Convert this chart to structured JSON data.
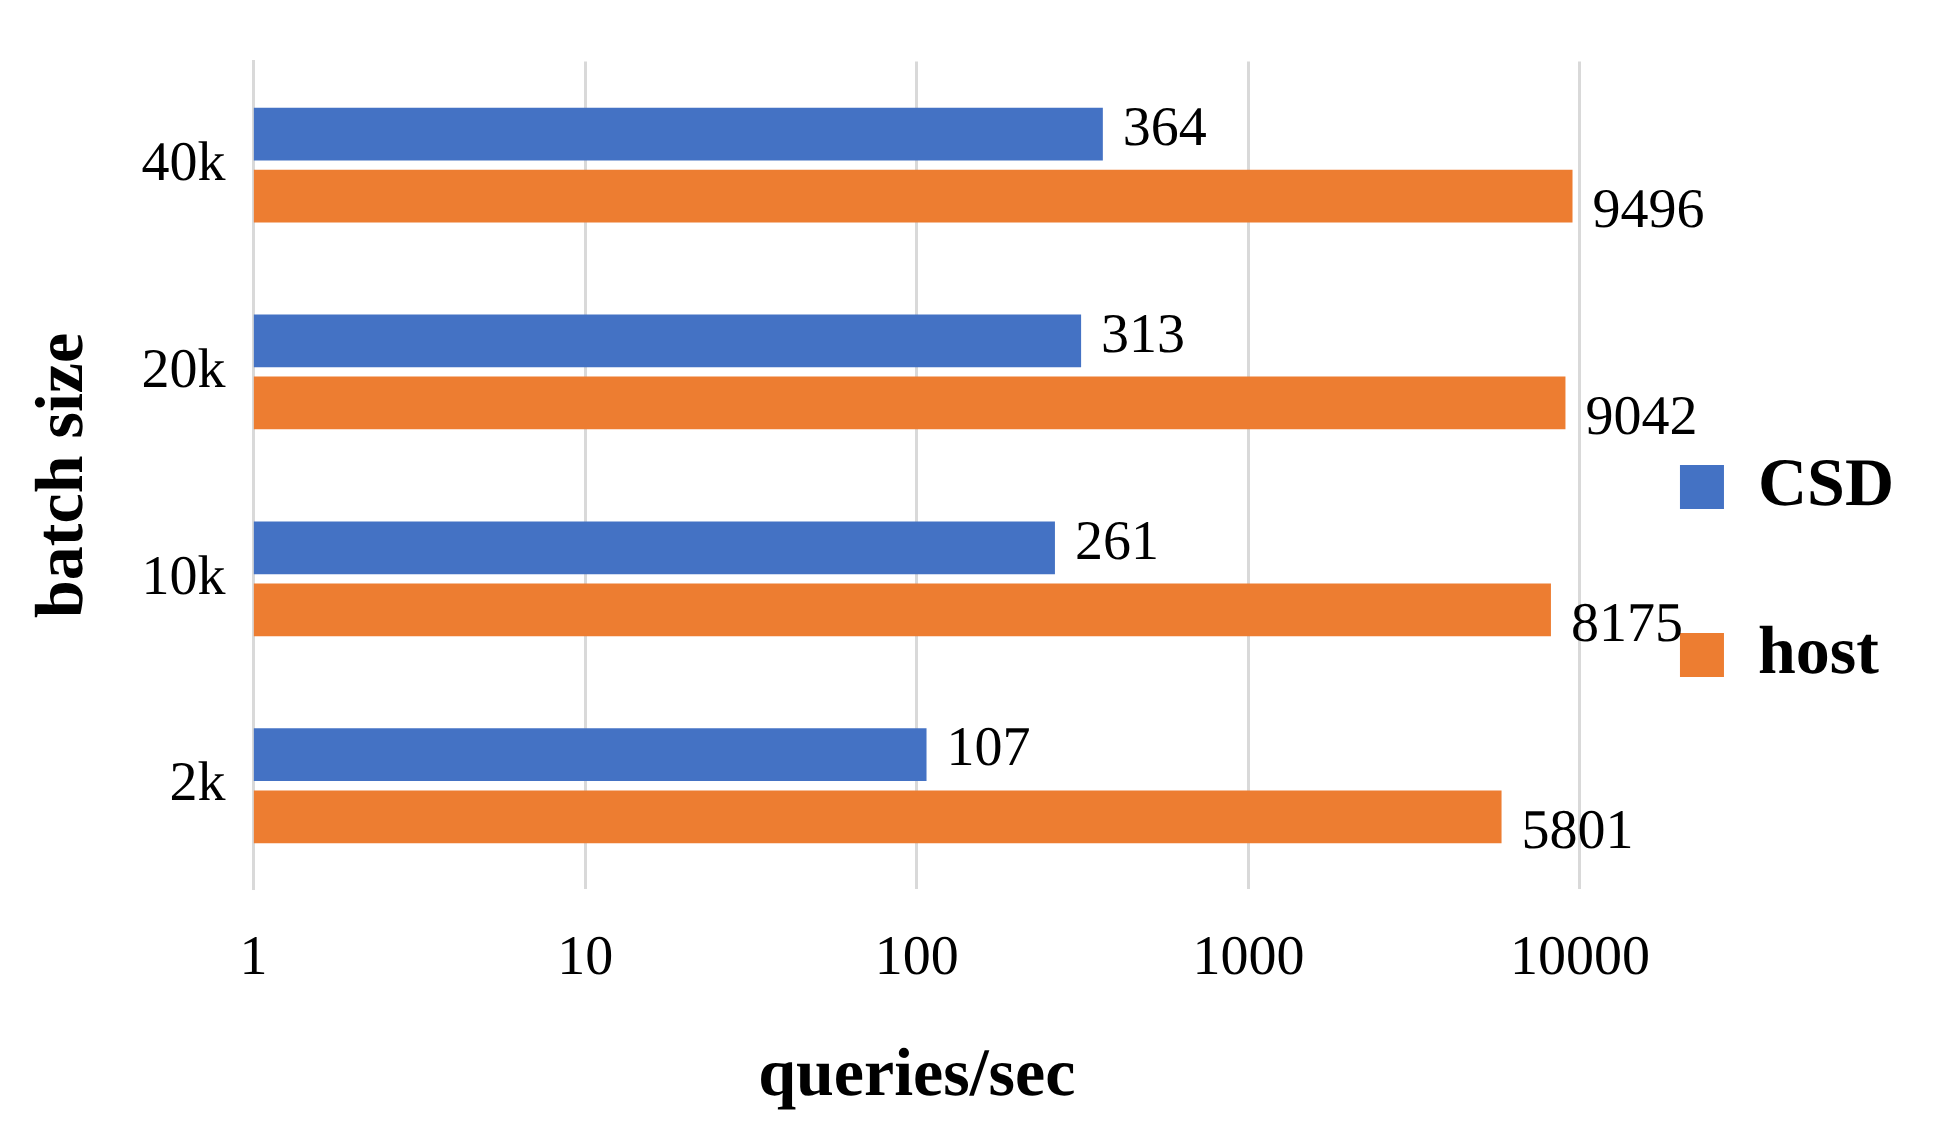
{
  "chart_data": {
    "type": "bar",
    "orientation": "horizontal",
    "xlabel": "queries/sec",
    "ylabel": "batch size",
    "categories": [
      "40k",
      "20k",
      "10k",
      "2k"
    ],
    "series": [
      {
        "name": "CSD",
        "color": "#4472c4",
        "values": [
          364,
          313,
          261,
          107
        ]
      },
      {
        "name": "host",
        "color": "#ed7d31",
        "values": [
          9496,
          9042,
          8175,
          5801
        ]
      }
    ],
    "log": "x",
    "xlim": [
      1,
      10000
    ],
    "xticks": [
      1,
      10,
      100,
      1000,
      10000
    ],
    "grid": "x",
    "legend": "right",
    "data_labels": true
  }
}
